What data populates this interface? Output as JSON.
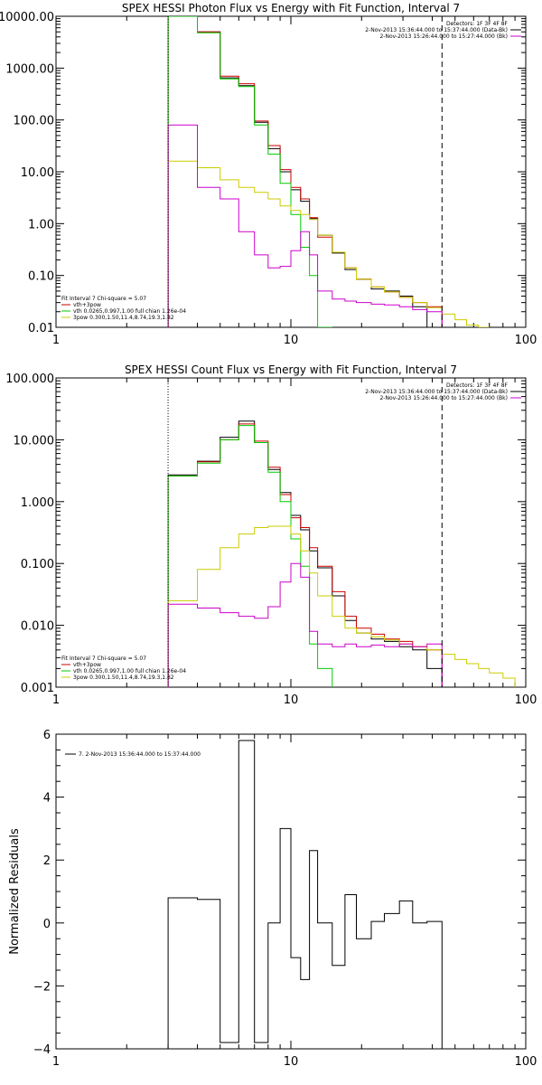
{
  "chart_data": [
    {
      "type": "line",
      "scale": "log-log",
      "title": "SPEX HESSI Photon Flux vs Energy with Fit Function, Interval 7",
      "xlim": [
        1,
        100
      ],
      "ylim": [
        0.01,
        10000
      ],
      "x_ticks": [
        "1",
        "10",
        "100"
      ],
      "y_ticks": [
        "0.01",
        "0.10",
        "1.00",
        "10.00",
        "100.00",
        "1000.00",
        "10000.00"
      ],
      "legend_top": [
        {
          "text": "Detectors: 1F 3F 4F 8F",
          "color": "#000000"
        },
        {
          "text": "2-Nov-2013 15:36:44.000 to 15:37:44.000 (Data-Bk)",
          "color": "#000000"
        },
        {
          "text": "2-Nov-2013 15:26:44.000 to 15:27:44.000 (Bk)",
          "color": "#cc00cc"
        }
      ],
      "legend_bottom": [
        {
          "text": "Fit Interval 7   Chi-square = 5.07",
          "color": "#000000"
        },
        {
          "text": "vth+3pow",
          "color": "#cc0000"
        },
        {
          "text": "vth 0.0265,0.997,1.00  full chian 1.26e-04",
          "color": "#00cc00"
        },
        {
          "text": "3pow 0.300,1.50,11.4,8.74,19.3,1.82",
          "color": "#cccc00"
        }
      ],
      "vlines": [
        {
          "x": 3,
          "style": "dotted"
        },
        {
          "x": 44,
          "style": "dashed"
        }
      ],
      "series": [
        {
          "name": "Data-Bk",
          "color": "#000000",
          "edges": [
            3,
            4,
            5,
            6,
            7,
            8,
            9,
            10,
            11,
            12,
            13,
            15,
            17,
            19,
            22,
            25,
            29,
            33,
            38,
            44
          ],
          "values": [
            10000,
            5000,
            650,
            460,
            90,
            28,
            10,
            4.5,
            2.7,
            1.25,
            0.6,
            0.27,
            0.13,
            0.085,
            0.055,
            0.05,
            0.04,
            0.025,
            0.01
          ]
        },
        {
          "name": "vth+3pow",
          "color": "#cc0000",
          "edges": [
            3,
            4,
            5,
            6,
            7,
            8,
            9,
            10,
            11,
            12,
            13,
            15,
            17,
            19,
            22,
            25,
            29,
            33,
            38,
            44
          ],
          "values": [
            10000,
            5000,
            700,
            500,
            95,
            32,
            11,
            5,
            3,
            1.3,
            0.55,
            0.28,
            0.14,
            0.085,
            0.06,
            0.048,
            0.038,
            0.03,
            0.025
          ]
        },
        {
          "name": "vth",
          "color": "#00cc00",
          "edges": [
            3,
            4,
            5,
            6,
            7,
            8,
            9,
            10,
            11,
            12,
            13,
            15
          ],
          "values": [
            10000,
            4800,
            620,
            440,
            80,
            22,
            6,
            1.5,
            0.35,
            0.1,
            0.01
          ]
        },
        {
          "name": "3pow",
          "color": "#cccc00",
          "edges": [
            3,
            4,
            5,
            6,
            7,
            8,
            9,
            10,
            11,
            12,
            13,
            15,
            17,
            19,
            22,
            25,
            29,
            33,
            38,
            44,
            50,
            56,
            63,
            70
          ],
          "values": [
            16,
            12,
            7,
            5,
            4,
            3,
            2.2,
            1.8,
            1.5,
            1.2,
            0.6,
            0.28,
            0.14,
            0.085,
            0.06,
            0.048,
            0.038,
            0.03,
            0.024,
            0.018,
            0.014,
            0.011,
            0.009
          ]
        },
        {
          "name": "Bk",
          "color": "#cc00cc",
          "edges": [
            3,
            4,
            5,
            6,
            7,
            8,
            9,
            10,
            11,
            12,
            13,
            15,
            17,
            19,
            22,
            25,
            29,
            33,
            38,
            44
          ],
          "values": [
            80,
            5,
            3,
            0.7,
            0.25,
            0.14,
            0.15,
            0.3,
            0.7,
            0.25,
            0.05,
            0.035,
            0.032,
            0.03,
            0.028,
            0.027,
            0.025,
            0.022,
            0.02
          ]
        }
      ]
    },
    {
      "type": "line",
      "scale": "log-log",
      "title": "SPEX HESSI Count Flux vs Energy with Fit Function, Interval 7",
      "xlim": [
        1,
        100
      ],
      "ylim": [
        0.001,
        100
      ],
      "x_ticks": [
        "1",
        "10",
        "100"
      ],
      "y_ticks": [
        "0.001",
        "0.010",
        "0.100",
        "1.000",
        "10.000",
        "100.000"
      ],
      "legend_top": [
        {
          "text": "Detectors: 1F 3F 4F 8F",
          "color": "#000000"
        },
        {
          "text": "2-Nov-2013 15:36:44.000 to 15:37:44.000 (Data-Bk)",
          "color": "#000000"
        },
        {
          "text": "2-Nov-2013 15:26:44.000 to 15:27:44.000 (Bk)",
          "color": "#cc00cc"
        }
      ],
      "legend_bottom": [
        {
          "text": "Fit Interval 7   Chi-square = 5.07",
          "color": "#000000"
        },
        {
          "text": "vth+3pow",
          "color": "#cc0000"
        },
        {
          "text": "vth 0.0265,0.997,1.00  full chian 1.26e-04",
          "color": "#00cc00"
        },
        {
          "text": "3pow 0.300,1.50,11.4,8.74,19.3,1.82",
          "color": "#cccc00"
        }
      ],
      "vlines": [
        {
          "x": 3,
          "style": "dotted"
        },
        {
          "x": 44,
          "style": "dashed"
        }
      ],
      "series": [
        {
          "name": "Data-Bk",
          "color": "#000000",
          "edges": [
            3,
            4,
            5,
            6,
            7,
            8,
            9,
            10,
            11,
            12,
            13,
            15,
            17,
            19,
            22,
            25,
            29,
            33,
            38,
            44
          ],
          "values": [
            2.7,
            4.5,
            11,
            20,
            9,
            3.3,
            1.4,
            0.6,
            0.35,
            0.16,
            0.085,
            0.03,
            0.012,
            0.0075,
            0.006,
            0.0055,
            0.0045,
            0.004,
            0.002
          ]
        },
        {
          "name": "vth+3pow",
          "color": "#cc0000",
          "edges": [
            3,
            4,
            5,
            6,
            7,
            8,
            9,
            10,
            11,
            12,
            13,
            15,
            17,
            19,
            22,
            25,
            29,
            33,
            38,
            44
          ],
          "values": [
            2.6,
            4.4,
            10,
            18,
            9.5,
            3.6,
            1.3,
            0.55,
            0.38,
            0.18,
            0.09,
            0.035,
            0.014,
            0.009,
            0.0072,
            0.006,
            0.0055,
            0.0045,
            0.004
          ]
        },
        {
          "name": "vth",
          "color": "#00cc00",
          "edges": [
            3,
            4,
            5,
            6,
            7,
            8,
            9,
            10,
            11,
            12,
            13,
            15
          ],
          "values": [
            2.6,
            4.2,
            10,
            17,
            9,
            3,
            1,
            0.25,
            0.09,
            0.005,
            0.002
          ]
        },
        {
          "name": "3pow",
          "color": "#cccc00",
          "edges": [
            3,
            4,
            5,
            6,
            7,
            8,
            9,
            10,
            11,
            12,
            13,
            15,
            17,
            19,
            22,
            25,
            29,
            33,
            38,
            44,
            50,
            56,
            63,
            70,
            80,
            90
          ],
          "values": [
            0.025,
            0.08,
            0.18,
            0.3,
            0.38,
            0.4,
            0.4,
            0.3,
            0.16,
            0.07,
            0.03,
            0.014,
            0.009,
            0.0075,
            0.0065,
            0.0058,
            0.005,
            0.0045,
            0.004,
            0.0034,
            0.0028,
            0.0024,
            0.002,
            0.0017,
            0.0014
          ]
        },
        {
          "name": "Bk",
          "color": "#cc00cc",
          "edges": [
            3,
            4,
            5,
            6,
            7,
            8,
            9,
            10,
            11,
            12,
            13,
            15,
            17,
            19,
            22,
            25,
            29,
            33,
            38,
            44
          ],
          "values": [
            0.022,
            0.019,
            0.016,
            0.014,
            0.013,
            0.02,
            0.05,
            0.1,
            0.06,
            0.008,
            0.005,
            0.0045,
            0.005,
            0.0045,
            0.0048,
            0.0045,
            0.005,
            0.0045,
            0.005
          ]
        }
      ]
    },
    {
      "type": "line",
      "scale": "log-linear",
      "title": "",
      "ylabel": "Normalized Residuals",
      "xlim": [
        1,
        100
      ],
      "ylim": [
        -4,
        6
      ],
      "x_ticks": [
        "1",
        "10",
        "100"
      ],
      "y_ticks": [
        "−4",
        "−2",
        "0",
        "2",
        "4",
        "6"
      ],
      "legend": "7. 2-Nov-2013 15:36:44.000 to 15:37:44.000",
      "series": [
        {
          "name": "7. 2-Nov-2013 15:36:44.000 to 15:37:44.000",
          "color": "#000000",
          "edges": [
            3,
            4,
            5,
            6,
            7,
            8,
            9,
            10,
            11,
            12,
            13,
            15,
            17,
            19,
            22,
            25,
            29,
            33,
            38,
            44
          ],
          "values": [
            0.8,
            0.75,
            -3.8,
            5.8,
            -3.8,
            0.0,
            3.0,
            -1.1,
            -1.8,
            2.3,
            0.0,
            -1.35,
            0.9,
            -0.5,
            0.05,
            0.3,
            0.7,
            0.0,
            0.05
          ]
        }
      ]
    }
  ]
}
